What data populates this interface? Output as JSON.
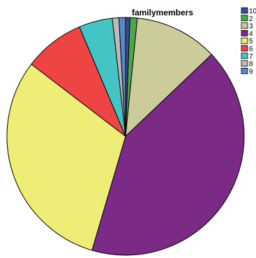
{
  "chart_data": {
    "type": "pie",
    "title": "familymembers",
    "legend_position": "top-right",
    "start_angle_deg": -90,
    "direction": "clockwise",
    "categories": [
      "10",
      "2",
      "3",
      "4",
      "5",
      "6",
      "7",
      "8",
      "9"
    ],
    "colors": [
      "#3b4b9a",
      "#4aa84a",
      "#cccc9a",
      "#7b2b86",
      "#eeee77",
      "#ee4444",
      "#44c4c4",
      "#bbbbbb",
      "#5a8ac4"
    ],
    "values": [
      0.6,
      1.0,
      11.4,
      41.9,
      31.0,
      8.3,
      4.6,
      0.9,
      0.9
    ],
    "unit": "percent"
  }
}
